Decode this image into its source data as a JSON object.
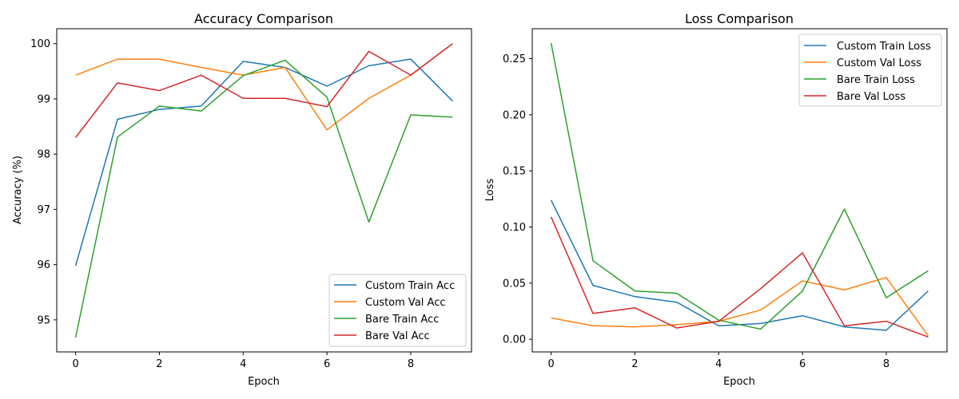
{
  "chart_data": [
    {
      "type": "line",
      "title": "Accuracy Comparison",
      "xlabel": "Epoch",
      "ylabel": "Accuracy (%)",
      "x": [
        0,
        1,
        2,
        3,
        4,
        5,
        6,
        7,
        8,
        9
      ],
      "xlim": [
        -0.45,
        9.45
      ],
      "ylim": [
        94.42,
        100.27
      ],
      "xticks": [
        0,
        2,
        4,
        6,
        8
      ],
      "yticks": [
        95,
        96,
        97,
        98,
        99,
        100
      ],
      "legend": "lower-right",
      "grid": false,
      "series": [
        {
          "name": "Custom Train Acc",
          "color": "#1f77b4",
          "values": [
            95.98,
            98.63,
            98.81,
            98.87,
            99.68,
            99.57,
            99.23,
            99.6,
            99.72,
            98.96
          ]
        },
        {
          "name": "Custom Val Acc",
          "color": "#ff7f0e",
          "values": [
            99.43,
            99.72,
            99.72,
            99.57,
            99.43,
            99.57,
            98.44,
            99.01,
            99.43,
            100.0
          ]
        },
        {
          "name": "Bare Train Acc",
          "color": "#2ca02c",
          "values": [
            94.68,
            98.31,
            98.87,
            98.78,
            99.42,
            99.7,
            99.03,
            96.77,
            98.71,
            98.67
          ]
        },
        {
          "name": "Bare Val Acc",
          "color": "#d62728",
          "values": [
            98.3,
            99.29,
            99.15,
            99.43,
            99.01,
            99.01,
            98.86,
            99.86,
            99.43,
            100.0
          ]
        }
      ]
    },
    {
      "type": "line",
      "title": "Loss Comparison",
      "xlabel": "Epoch",
      "ylabel": "Loss",
      "x": [
        0,
        1,
        2,
        3,
        4,
        5,
        6,
        7,
        8,
        9
      ],
      "xlim": [
        -0.45,
        9.45
      ],
      "ylim": [
        -0.0113,
        0.2767
      ],
      "xticks": [
        0,
        2,
        4,
        6,
        8
      ],
      "yticks": [
        0.0,
        0.05,
        0.1,
        0.15,
        0.2,
        0.25
      ],
      "ytick_labels": [
        "0.00",
        "0.05",
        "0.10",
        "0.15",
        "0.20",
        "0.25"
      ],
      "legend": "upper-right",
      "grid": false,
      "series": [
        {
          "name": "Custom Train Loss",
          "color": "#1f77b4",
          "values": [
            0.124,
            0.048,
            0.038,
            0.033,
            0.012,
            0.014,
            0.021,
            0.011,
            0.008,
            0.043
          ]
        },
        {
          "name": "Custom Val Loss",
          "color": "#ff7f0e",
          "values": [
            0.019,
            0.012,
            0.011,
            0.013,
            0.016,
            0.026,
            0.052,
            0.044,
            0.055,
            0.003
          ]
        },
        {
          "name": "Bare Train Loss",
          "color": "#2ca02c",
          "values": [
            0.264,
            0.07,
            0.043,
            0.041,
            0.017,
            0.009,
            0.043,
            0.116,
            0.037,
            0.061
          ]
        },
        {
          "name": "Bare Val Loss",
          "color": "#d62728",
          "values": [
            0.109,
            0.023,
            0.028,
            0.01,
            0.016,
            0.045,
            0.077,
            0.012,
            0.016,
            0.002
          ]
        }
      ]
    }
  ]
}
